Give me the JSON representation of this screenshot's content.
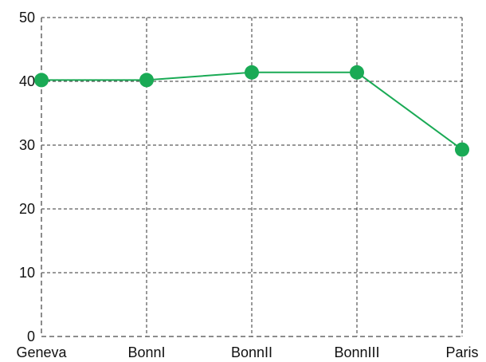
{
  "chart_data": {
    "type": "line",
    "title": "",
    "xlabel": "",
    "ylabel": "",
    "categories": [
      "Geneva",
      "BonnI",
      "BonnII",
      "BonnIII",
      "Paris"
    ],
    "series": [
      {
        "values": [
          40.2,
          40.2,
          41.4,
          41.4,
          29.3
        ],
        "color": "#1aaa55"
      }
    ],
    "ylim": [
      0,
      50
    ],
    "yticks": [
      0,
      10,
      20,
      30,
      40,
      50
    ],
    "grid": true,
    "legend": "none"
  }
}
